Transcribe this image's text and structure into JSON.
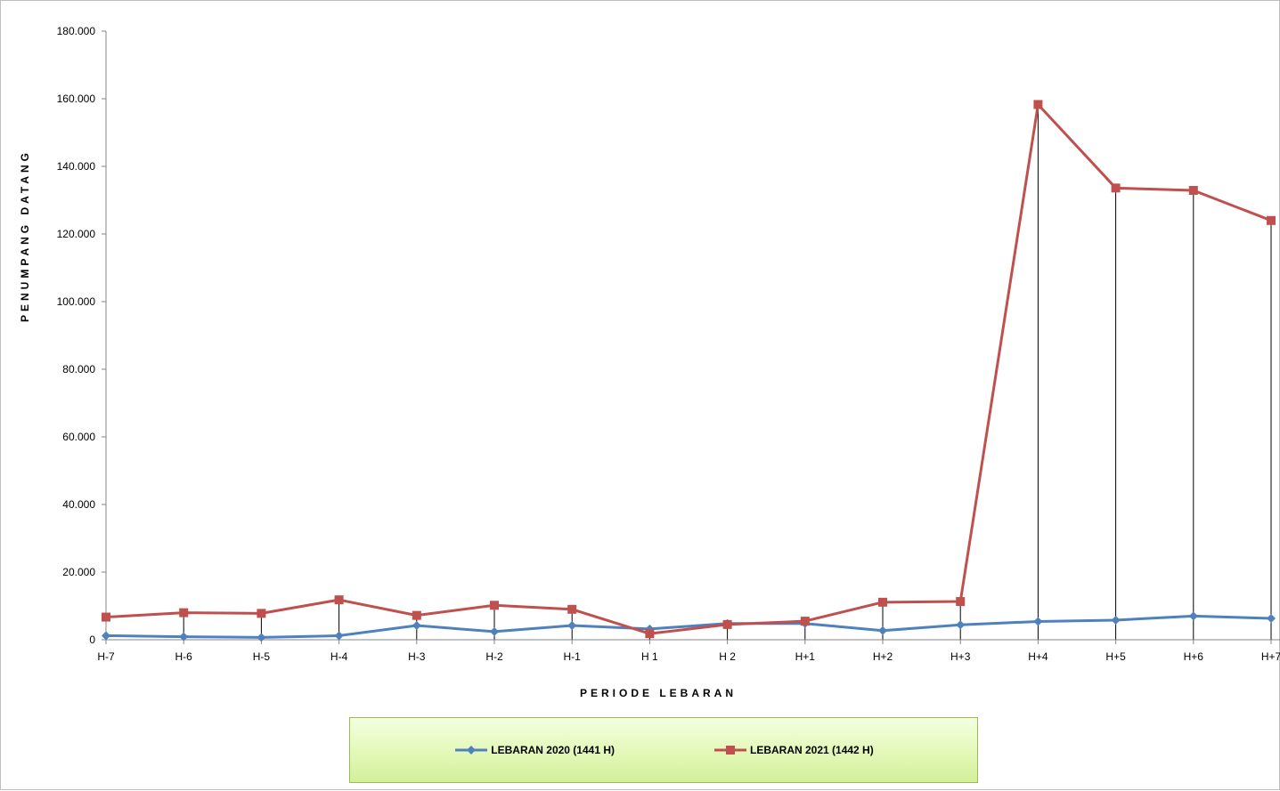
{
  "chart_data": {
    "type": "line",
    "title": "",
    "xlabel": "PERIODE LEBARAN",
    "ylabel": "PENUMPANG DATANG",
    "categories": [
      "H-7",
      "H-6",
      "H-5",
      "H-4",
      "H-3",
      "H-2",
      "H-1",
      "H 1",
      "H 2",
      "H+1",
      "H+2",
      "H+3",
      "H+4",
      "H+5",
      "H+6",
      "H+7"
    ],
    "ylim": [
      0,
      180000
    ],
    "yticks": [
      0,
      20000,
      40000,
      60000,
      80000,
      100000,
      120000,
      140000,
      160000,
      180000
    ],
    "ytick_labels": [
      "0",
      "20.000",
      "40.000",
      "60.000",
      "80.000",
      "100.000",
      "120.000",
      "140.000",
      "160.000",
      "180.000"
    ],
    "grid": false,
    "drop_lines": true,
    "legend_position": "bottom",
    "series": [
      {
        "name": "LEBARAN 2020 (1441 H)",
        "color": "#4f81bd",
        "marker": "diamond",
        "values": [
          1200,
          900,
          700,
          1200,
          4200,
          2400,
          4200,
          3200,
          4800,
          4800,
          2700,
          4400,
          5400,
          5800,
          7000,
          6300
        ]
      },
      {
        "name": "LEBARAN 2021 (1442 H)",
        "color": "#c0504d",
        "marker": "square",
        "values": [
          6700,
          8000,
          7800,
          11800,
          7200,
          10200,
          9000,
          1800,
          4500,
          5500,
          11100,
          11300,
          158300,
          133600,
          132900,
          124000
        ]
      }
    ]
  }
}
